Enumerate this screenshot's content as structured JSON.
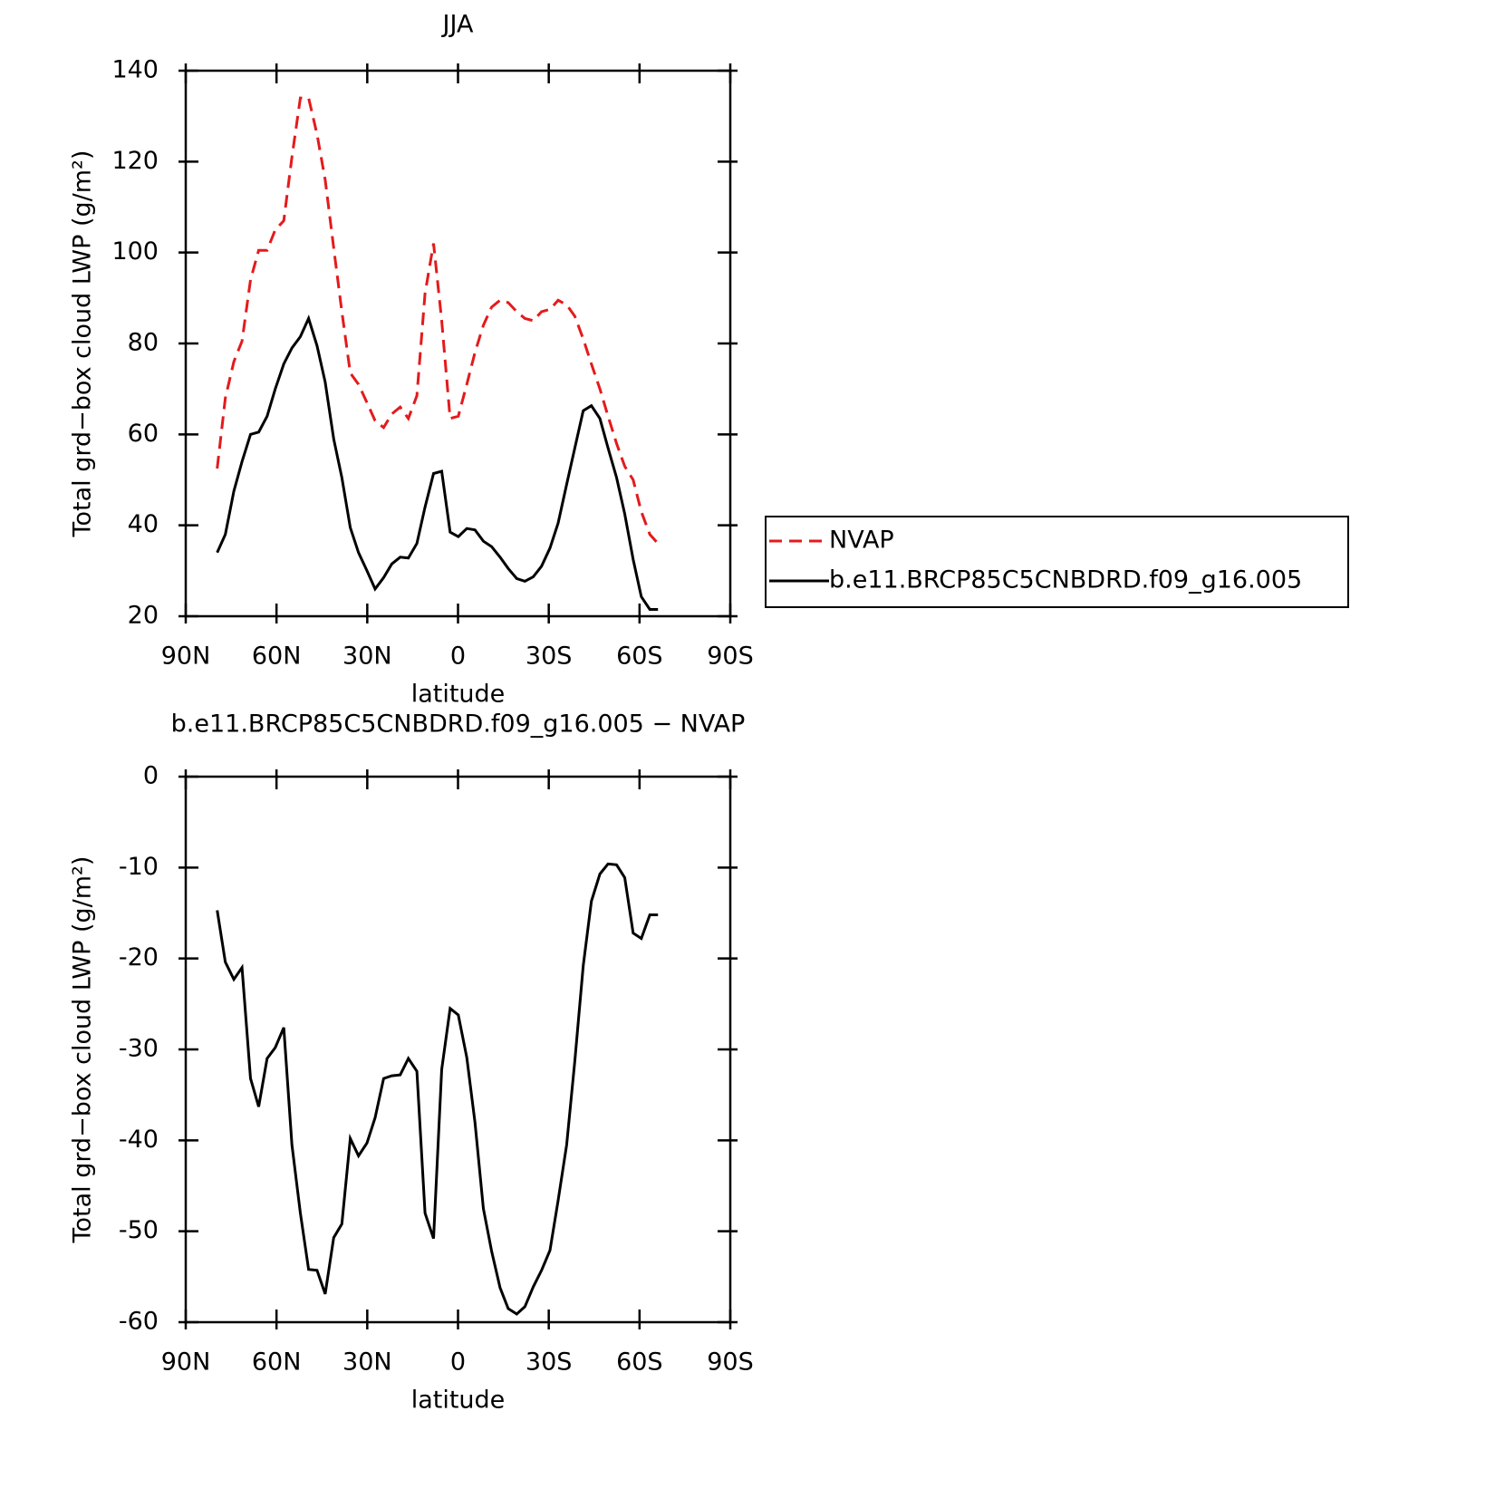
{
  "chart_data": [
    {
      "type": "line",
      "title": "JJA",
      "xlabel": "latitude",
      "ylabel": "Total grd−box cloud LWP (g/m²)",
      "x": [
        79.6,
        76.9,
        74.1,
        71.4,
        68.6,
        65.9,
        63.1,
        60.4,
        57.6,
        54.9,
        52.1,
        49.4,
        46.6,
        43.9,
        41.1,
        38.4,
        35.6,
        32.9,
        30.1,
        27.4,
        24.6,
        21.9,
        19.1,
        16.4,
        13.6,
        10.9,
        8.1,
        5.4,
        2.6,
        -0.1,
        -2.9,
        -5.6,
        -8.4,
        -11.1,
        -13.9,
        -16.6,
        -19.4,
        -22.1,
        -24.9,
        -27.6,
        -30.4,
        -33.1,
        -35.9,
        -38.6,
        -41.4,
        -44.1,
        -46.9,
        -49.6,
        -52.4,
        -55.1,
        -57.9,
        -60.6,
        -63.4,
        -66.1
      ],
      "series": [
        {
          "name": "NVAP",
          "color": "#e41a1c",
          "line_style": "dashed",
          "values": [
            52.5,
            68,
            76,
            80.5,
            94,
            100.5,
            100.5,
            105,
            107,
            121,
            134,
            134,
            126,
            116,
            101,
            87,
            73.5,
            71,
            67,
            63,
            61.5,
            64.5,
            66,
            63.5,
            68.5,
            91,
            102,
            85,
            63.5,
            64,
            71,
            78,
            84,
            88,
            89.5,
            89,
            87,
            85.5,
            85,
            87,
            87.5,
            89.5,
            88.5,
            86,
            81,
            75.5,
            70,
            64,
            58,
            53,
            50,
            43,
            38,
            36
          ]
        },
        {
          "name": "b.e11.BRCP85C5CNBDRD.f09_g16.005",
          "color": "#000000",
          "line_style": "solid",
          "values": [
            34,
            38,
            47.5,
            54,
            60,
            60.5,
            64,
            70,
            75.5,
            79,
            81.5,
            85.5,
            79.5,
            71.5,
            59,
            50.5,
            39.5,
            34,
            30,
            26,
            28.5,
            31.5,
            33,
            32.8,
            36,
            44,
            51.4,
            51.9,
            38.5,
            37.5,
            39.3,
            39,
            36.5,
            35.3,
            33,
            30.5,
            28.3,
            27.7,
            28.7,
            31,
            35,
            40.5,
            49,
            57,
            65.2,
            66.3,
            63.5,
            57,
            50.5,
            42.5,
            32.5,
            24.3,
            21.5,
            21.5
          ]
        }
      ],
      "xlim": [
        90,
        -90
      ],
      "ylim": [
        20,
        140
      ],
      "xticks": [
        {
          "value": 90,
          "label": "90N"
        },
        {
          "value": 60,
          "label": "60N"
        },
        {
          "value": 30,
          "label": "30N"
        },
        0,
        {
          "value": -30,
          "label": "30S"
        },
        {
          "value": -60,
          "label": "60S"
        },
        {
          "value": -90,
          "label": "90S"
        }
      ],
      "yticks": [
        20,
        40,
        60,
        80,
        100,
        120,
        140
      ],
      "legend": "outside-right"
    },
    {
      "type": "line",
      "title": "b.e11.BRCP85C5CNBDRD.f09_g16.005 − NVAP",
      "xlabel": "latitude",
      "ylabel": "Total grd−box cloud LWP (g/m²)",
      "x": [
        79.6,
        76.9,
        74.1,
        71.4,
        68.6,
        65.9,
        63.1,
        60.4,
        57.6,
        54.9,
        52.1,
        49.4,
        46.6,
        43.9,
        41.1,
        38.4,
        35.6,
        32.9,
        30.1,
        27.4,
        24.6,
        21.9,
        19.1,
        16.4,
        13.6,
        10.9,
        8.1,
        5.4,
        2.6,
        -0.1,
        -2.9,
        -5.6,
        -8.4,
        -11.1,
        -13.9,
        -16.6,
        -19.4,
        -22.1,
        -24.9,
        -27.6,
        -30.4,
        -33.1,
        -35.9,
        -38.6,
        -41.4,
        -44.1,
        -46.9,
        -49.6,
        -52.4,
        -55.1,
        -57.9,
        -60.6,
        -63.4,
        -66.1
      ],
      "series": [
        {
          "color": "#000000",
          "line_style": "solid",
          "values": [
            -14.7,
            -20.4,
            -22.3,
            -21,
            -33.2,
            -36.3,
            -31,
            -29.8,
            -27.6,
            -40.5,
            -48,
            -54.2,
            -54.3,
            -56.9,
            -50.7,
            -49.2,
            -39.8,
            -41.7,
            -40.3,
            -37.5,
            -33.2,
            -32.9,
            -32.8,
            -31,
            -32.4,
            -48,
            -50.8,
            -32.2,
            -25.5,
            -26.2,
            -30.9,
            -38,
            -47.5,
            -52.2,
            -56.2,
            -58.5,
            -59.1,
            -58.3,
            -56.1,
            -54.3,
            -52.1,
            -46.6,
            -40.5,
            -31.3,
            -20.8,
            -13.7,
            -10.7,
            -9.6,
            -9.7,
            -11.1,
            -17.2,
            -17.8,
            -15.2,
            -15.2
          ]
        }
      ],
      "xlim": [
        90,
        -90
      ],
      "ylim": [
        -60,
        0
      ],
      "xticks": [
        {
          "value": 90,
          "label": "90N"
        },
        {
          "value": 60,
          "label": "60N"
        },
        {
          "value": 30,
          "label": "30N"
        },
        0,
        {
          "value": -30,
          "label": "30S"
        },
        {
          "value": -60,
          "label": "60S"
        },
        {
          "value": -90,
          "label": "90S"
        }
      ],
      "yticks": [
        -60,
        -50,
        -40,
        -30,
        -20,
        -10,
        0
      ]
    }
  ]
}
